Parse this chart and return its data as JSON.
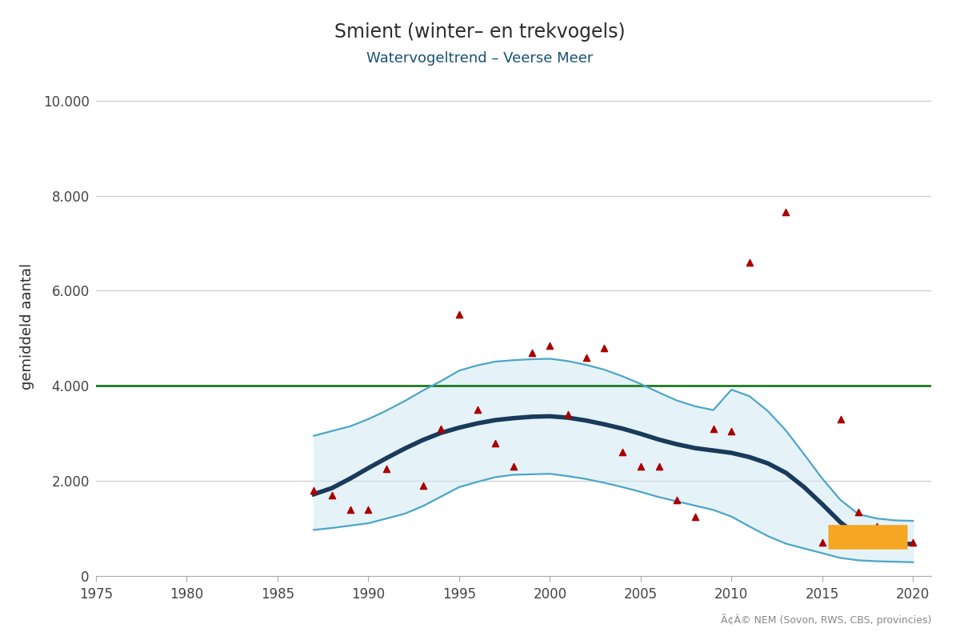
{
  "title": "Smient (winter– en trekvogels)",
  "subtitle": "Watervogeltrend – Veerse Meer",
  "ylabel": "gemiddeld aantal",
  "copyright": "Ã¢Â© NEM (Sovon, RWS, CBS, provincies)",
  "xlim": [
    1975,
    2021
  ],
  "ylim": [
    0,
    10500
  ],
  "yticks": [
    0,
    2000,
    4000,
    6000,
    8000,
    10000
  ],
  "ytick_labels": [
    "0",
    "2.000",
    "4.000",
    "6.000",
    "8.000",
    "10.000"
  ],
  "xticks": [
    1975,
    1980,
    1985,
    1990,
    1995,
    2000,
    2005,
    2010,
    2015,
    2020
  ],
  "bg_color": "#ffffff",
  "grid_color": "#c8c8c8",
  "title_color": "#2d2d2d",
  "subtitle_color": "#1a5276",
  "ylabel_color": "#2d2d2d",
  "green_line_y": 4000,
  "green_line_color": "#1e7a1e",
  "trend_line_color": "#1a3a5c",
  "ci_line_color": "#4da6c8",
  "ci_fill_color": "#d0eaf5",
  "orange_bar_color": "#f5a623",
  "scatter_color": "#aa0000",
  "scatter_marker": "^",
  "scatter_size": 35,
  "trend_years": [
    1987,
    1988,
    1989,
    1990,
    1991,
    1992,
    1993,
    1994,
    1995,
    1996,
    1997,
    1998,
    1999,
    2000,
    2001,
    2002,
    2003,
    2004,
    2005,
    2006,
    2007,
    2008,
    2009,
    2010,
    2011,
    2012,
    2013,
    2014,
    2015,
    2016,
    2017,
    2018,
    2019,
    2020
  ],
  "trend_values": [
    1720,
    1850,
    2050,
    2270,
    2480,
    2680,
    2860,
    3010,
    3120,
    3210,
    3280,
    3320,
    3350,
    3360,
    3330,
    3270,
    3190,
    3100,
    2990,
    2870,
    2770,
    2690,
    2640,
    2590,
    2500,
    2370,
    2170,
    1870,
    1510,
    1130,
    840,
    730,
    690,
    670
  ],
  "ci_upper": [
    2950,
    3050,
    3150,
    3300,
    3480,
    3680,
    3900,
    4100,
    4320,
    4430,
    4510,
    4540,
    4560,
    4570,
    4520,
    4440,
    4340,
    4200,
    4040,
    3860,
    3690,
    3570,
    3490,
    3920,
    3780,
    3470,
    3060,
    2560,
    2050,
    1600,
    1300,
    1210,
    1170,
    1160
  ],
  "ci_lower": [
    970,
    1010,
    1060,
    1110,
    1210,
    1310,
    1470,
    1670,
    1870,
    1980,
    2080,
    2130,
    2140,
    2150,
    2100,
    2040,
    1960,
    1870,
    1770,
    1660,
    1570,
    1480,
    1390,
    1250,
    1040,
    840,
    680,
    580,
    480,
    380,
    330,
    310,
    300,
    290
  ],
  "scatter_x": [
    1987,
    1988,
    1989,
    1990,
    1991,
    1993,
    1994,
    1995,
    1996,
    1997,
    1998,
    1999,
    2000,
    2001,
    2002,
    2003,
    2004,
    2005,
    2006,
    2007,
    2008,
    2009,
    2010,
    2011,
    2013,
    2015,
    2016,
    2017,
    2018,
    2019,
    2020
  ],
  "scatter_y": [
    1800,
    1700,
    1400,
    1400,
    2250,
    1900,
    3100,
    5500,
    3500,
    2800,
    2300,
    4700,
    4850,
    3400,
    4600,
    4800,
    2600,
    2300,
    2300,
    1600,
    1250,
    3100,
    3050,
    6600,
    7650,
    700,
    3300,
    1350,
    1050,
    850,
    700
  ],
  "orange_bar_xstart": 2015.3,
  "orange_bar_xend": 2019.7,
  "orange_bar_y": 820,
  "orange_bar_height": 100
}
